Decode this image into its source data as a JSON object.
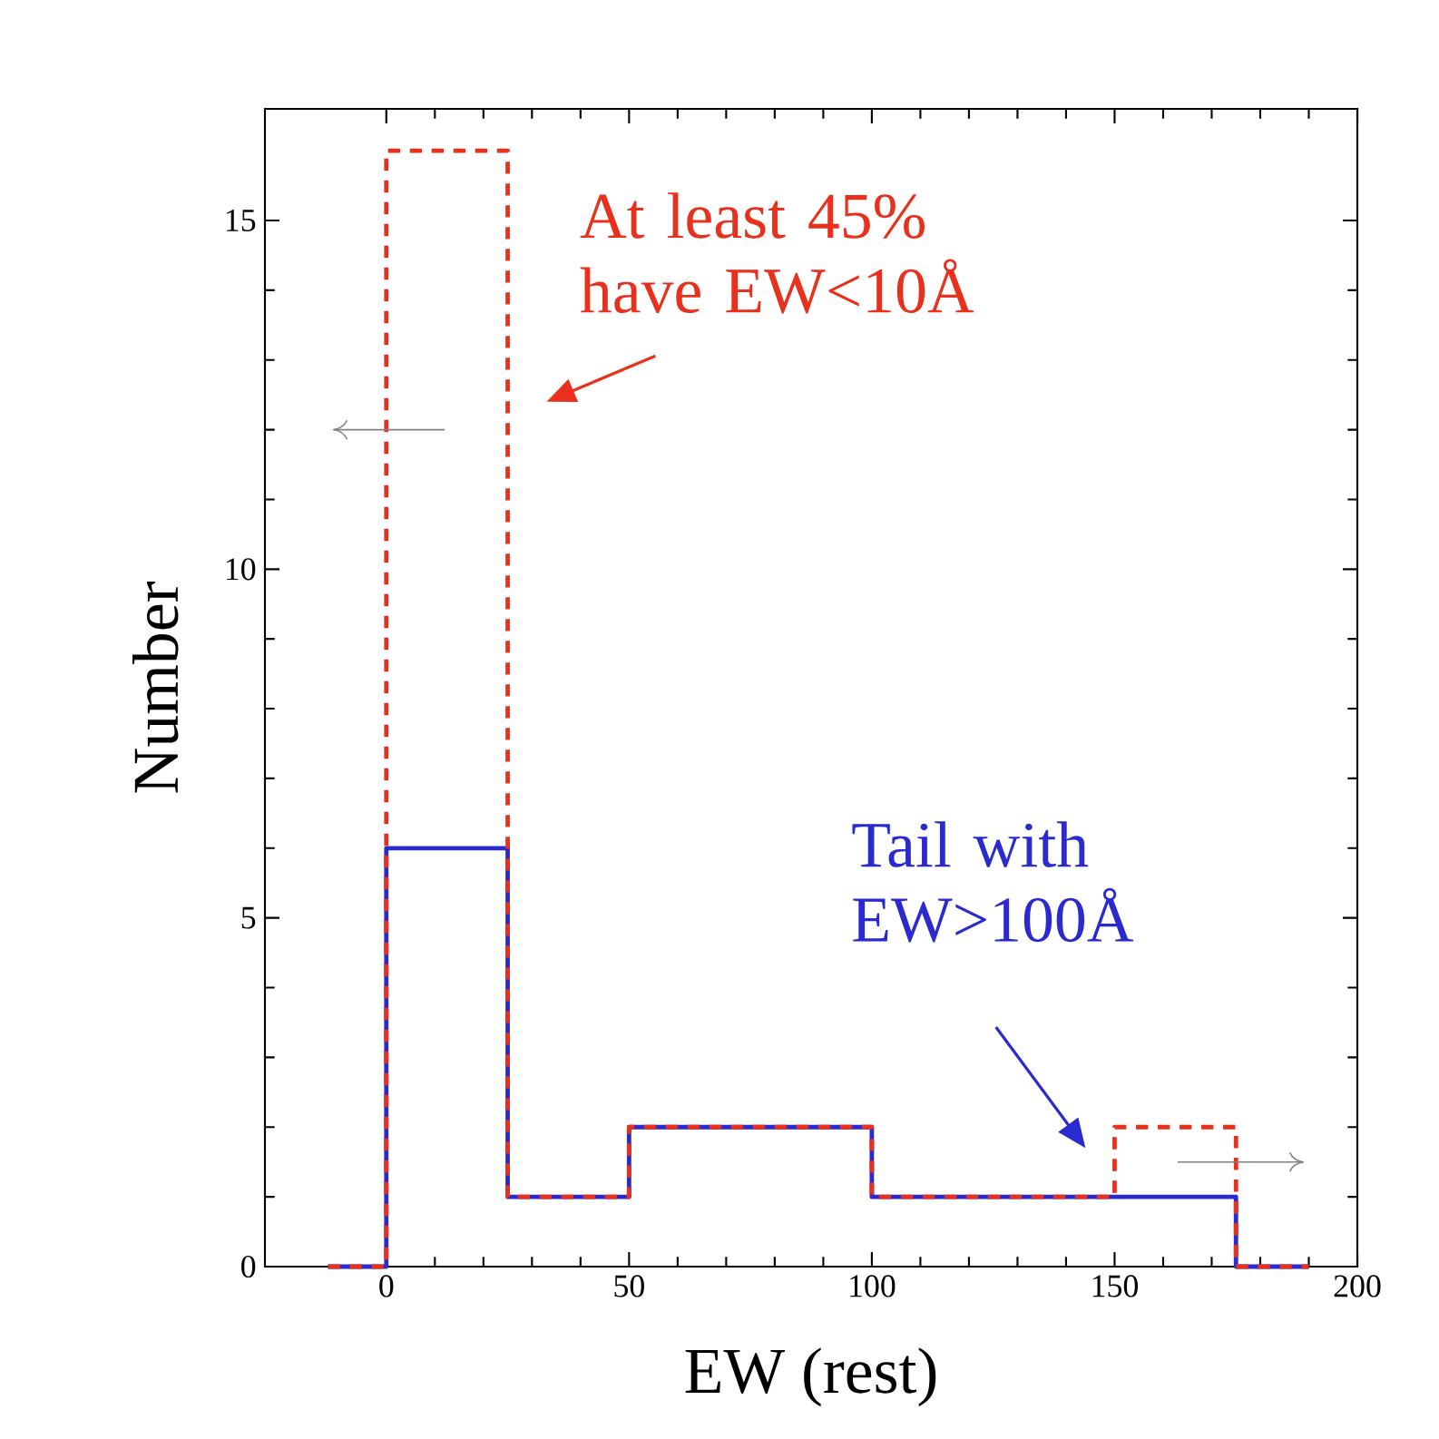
{
  "chart_data": {
    "type": "histogram",
    "xlabel": "EW (rest)",
    "ylabel": "Number",
    "bins": [
      -12,
      0,
      25,
      50,
      100,
      150,
      175,
      190
    ],
    "series": [
      {
        "color": "#e8301c",
        "line_style": "dashed",
        "values": [
          0,
          16,
          1,
          2,
          1,
          2,
          0
        ]
      },
      {
        "color": "#2a2ad0",
        "line_style": "solid",
        "values": [
          0,
          6,
          1,
          2,
          1,
          1,
          0
        ]
      }
    ],
    "xlim": [
      -25,
      200
    ],
    "ylim": [
      0,
      16.6
    ],
    "xticks": [
      0,
      50,
      100,
      150,
      200
    ],
    "yticks": [
      0,
      5,
      10,
      15
    ],
    "grid": false,
    "annotations": [
      "At least 45% have EW<10Å",
      "Tail with EW>100Å"
    ]
  }
}
